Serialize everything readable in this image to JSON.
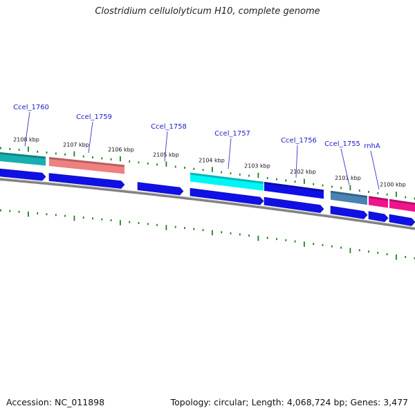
{
  "header": {
    "title": "Clostridium cellulolyticum H10, complete genome"
  },
  "footer": {
    "accession": "Accession: NC_011898",
    "summary": "Topology: circular; Length: 4,068,724 bp; Genes: 3,477"
  },
  "colors": {
    "backbone": "#808080",
    "tick": "#1e7e1e",
    "cds_arrow": "#1010e6",
    "gene_label": "#1a1acc",
    "leader": "#3333cc"
  },
  "kbp_ticks": [
    {
      "label": "2108 kbp"
    },
    {
      "label": "2107 kbp"
    },
    {
      "label": "2106 kbp"
    },
    {
      "label": "2105 kbp"
    },
    {
      "label": "2104 kbp"
    },
    {
      "label": "2103 kbp"
    },
    {
      "label": "2102 kbp"
    },
    {
      "label": "2101 kbp"
    },
    {
      "label": "2100 kbp"
    }
  ],
  "genes": [
    {
      "label": "Ccel_1760",
      "color": "#17b0b0"
    },
    {
      "label": "Ccel_1759",
      "color": "#f08080"
    },
    {
      "label": "Ccel_1758",
      "color": ""
    },
    {
      "label": "Ccel_1757",
      "color": "#00f5f5"
    },
    {
      "label": "Ccel_1756",
      "color": "#1010e6"
    },
    {
      "label": "Ccel_1755",
      "color": "#4a82b4"
    },
    {
      "label": "rnhA",
      "color": "#f0148c"
    },
    {
      "label": "",
      "color": "#f0148c"
    }
  ]
}
